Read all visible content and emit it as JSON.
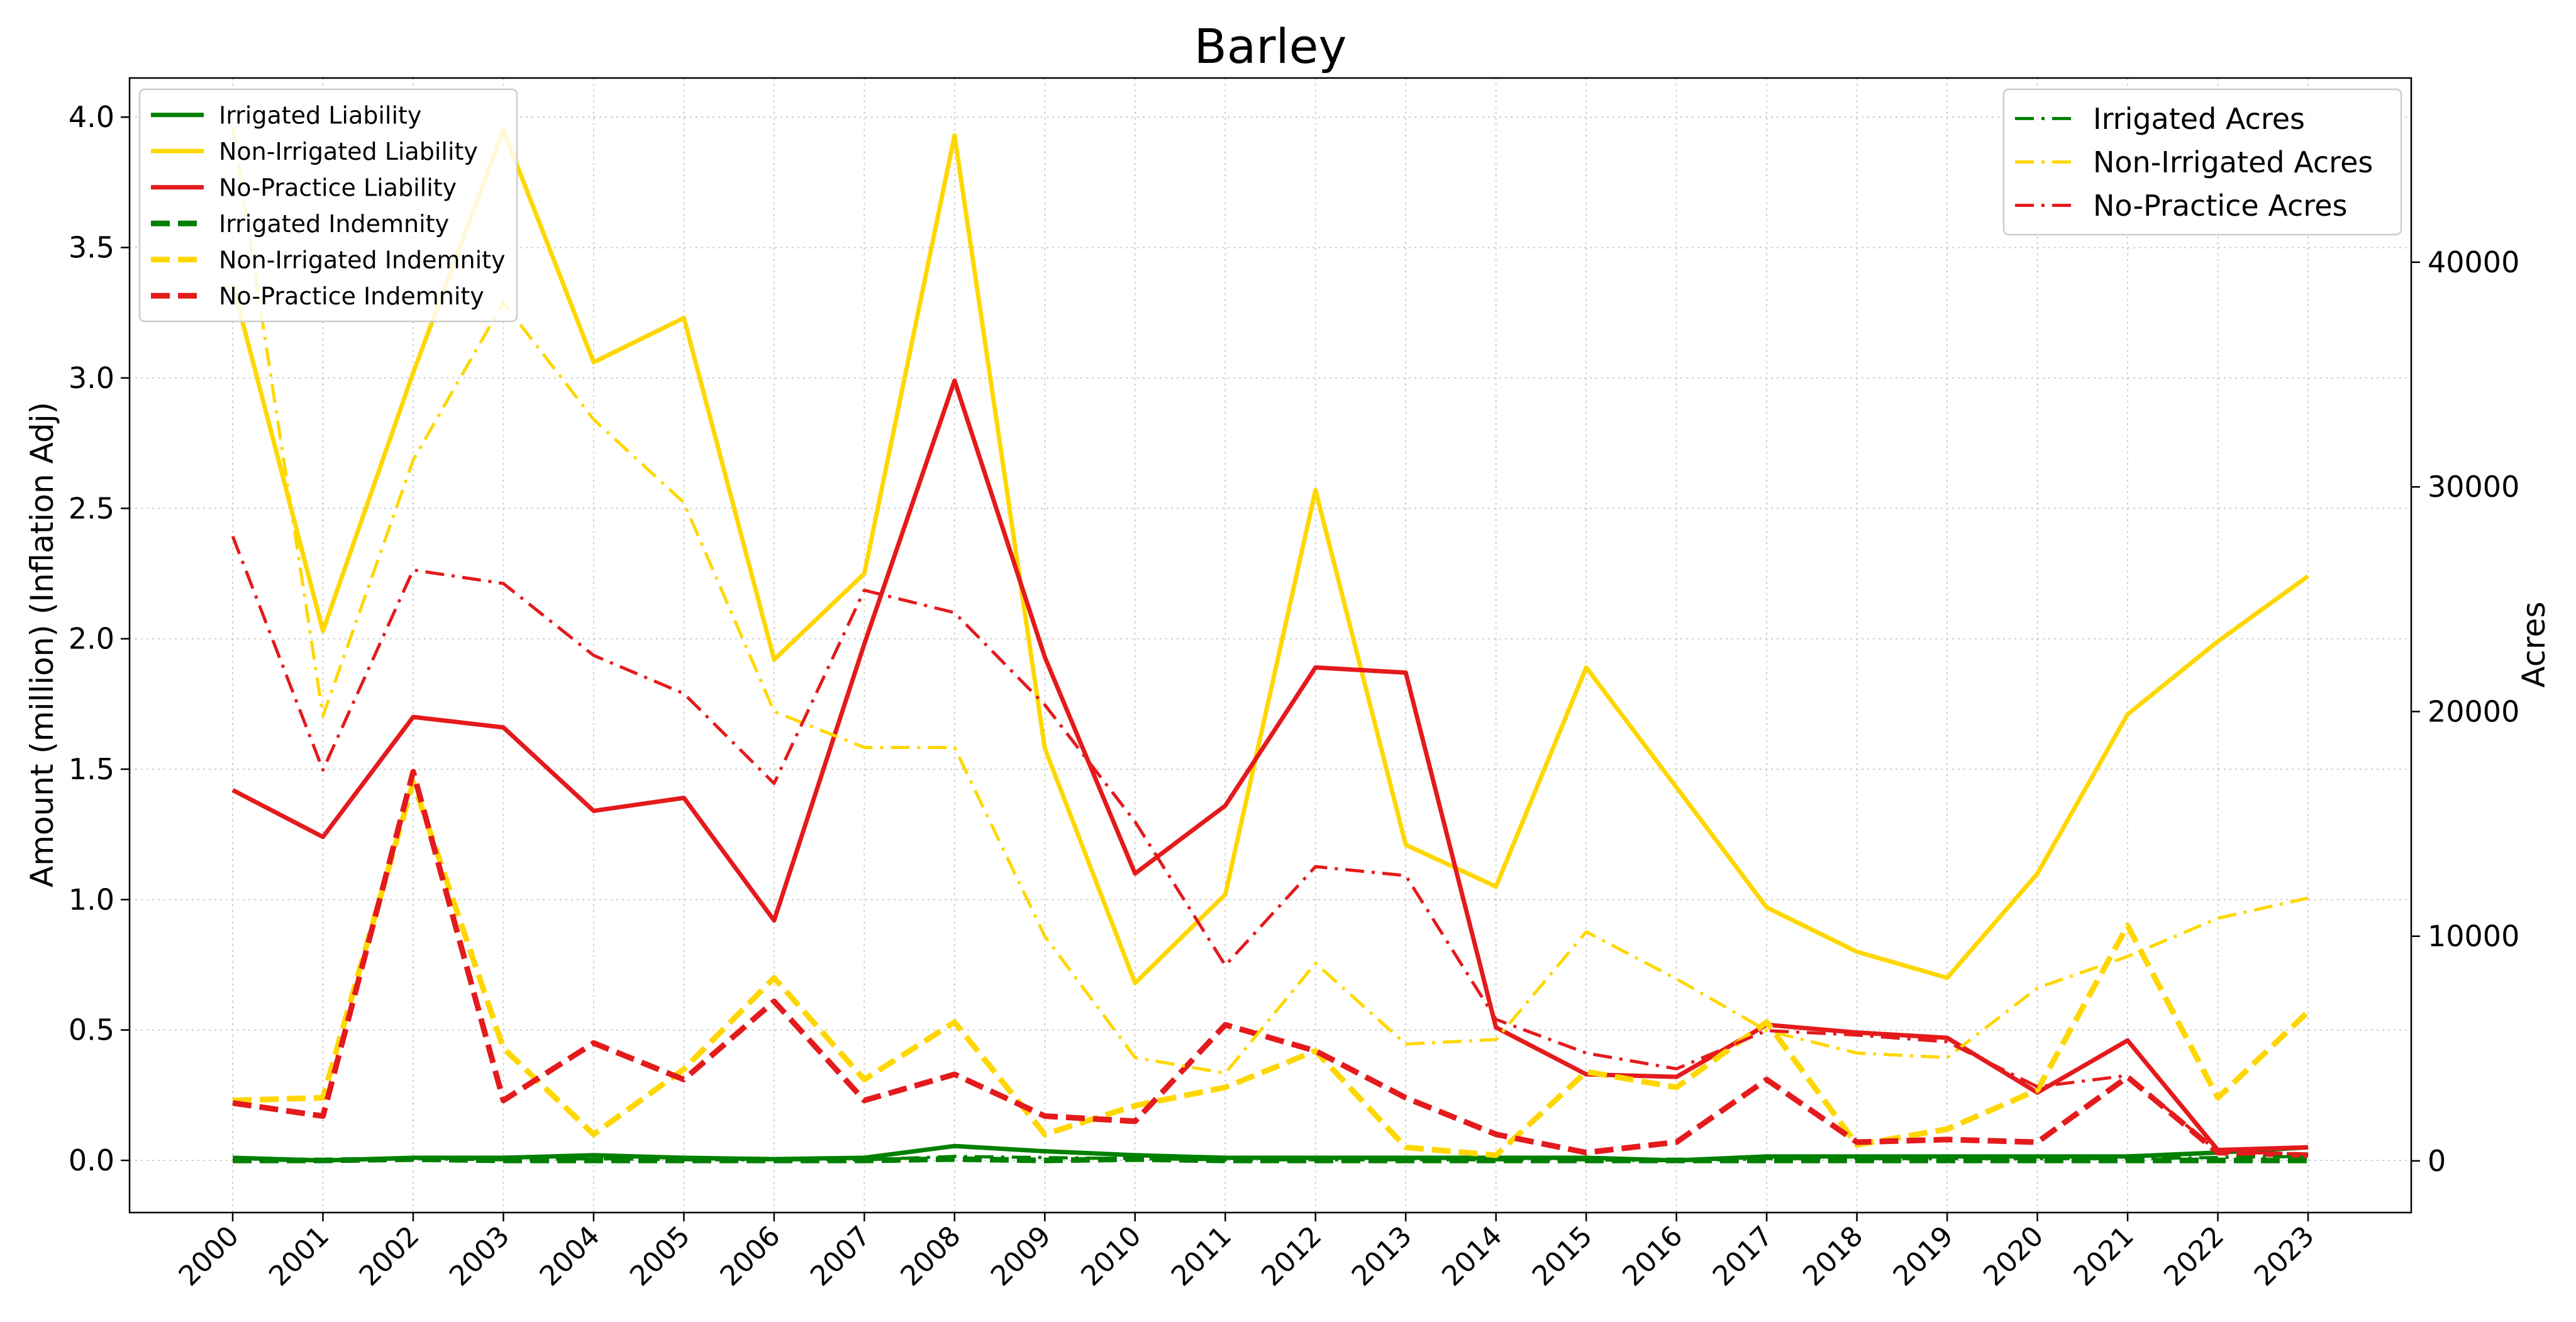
{
  "chart_data": {
    "type": "line",
    "title": "Barley",
    "ylabel": "Amount (million) (Inflation Adj)",
    "y2label": "Acres",
    "ylim": [
      -0.2,
      4.15
    ],
    "y2lim": [
      -2300,
      48200
    ],
    "yticks": [
      "0.0",
      "0.5",
      "1.0",
      "1.5",
      "2.0",
      "2.5",
      "3.0",
      "3.5",
      "4.0"
    ],
    "y2ticks": [
      "0",
      "10000",
      "20000",
      "30000",
      "40000"
    ],
    "grid": true,
    "categories": [
      "2000",
      "2001",
      "2002",
      "2003",
      "2004",
      "2005",
      "2006",
      "2007",
      "2008",
      "2009",
      "2010",
      "2011",
      "2012",
      "2013",
      "2014",
      "2015",
      "2016",
      "2017",
      "2018",
      "2019",
      "2020",
      "2021",
      "2022",
      "2023"
    ],
    "legend_left_placement": "top-left",
    "legend_right_placement": "top-right",
    "series": [
      {
        "name": "Irrigated Liability",
        "axis": "left",
        "style": "solid",
        "color": "#008000",
        "values": [
          0.01,
          0.0,
          0.01,
          0.01,
          0.02,
          0.01,
          0.005,
          0.01,
          0.055,
          0.035,
          0.02,
          0.01,
          0.01,
          0.01,
          0.01,
          0.01,
          0.0,
          0.015,
          0.015,
          0.015,
          0.015,
          0.015,
          0.03,
          0.05
        ]
      },
      {
        "name": "Non-Irrigated Liability",
        "axis": "left",
        "style": "solid",
        "color": "#FFD700",
        "values": [
          3.36,
          2.03,
          3.02,
          3.95,
          3.06,
          3.23,
          1.92,
          2.25,
          3.93,
          1.58,
          0.68,
          1.02,
          2.57,
          1.21,
          1.05,
          1.89,
          1.43,
          0.97,
          0.8,
          0.7,
          1.1,
          1.71,
          1.99,
          2.24
        ]
      },
      {
        "name": "No-Practice Liability",
        "axis": "left",
        "style": "solid",
        "color": "#E41A1C",
        "values": [
          1.42,
          1.24,
          1.7,
          1.66,
          1.34,
          1.39,
          0.92,
          1.98,
          2.99,
          1.93,
          1.1,
          1.36,
          1.89,
          1.87,
          0.51,
          0.33,
          0.32,
          0.52,
          0.49,
          0.47,
          0.26,
          0.46,
          0.04,
          0.05
        ]
      },
      {
        "name": "Irrigated Indemnity",
        "axis": "left",
        "style": "dashed",
        "color": "#008000",
        "values": [
          0.0,
          0.0,
          0.005,
          0.0,
          0.0,
          0.0,
          0.0,
          0.0,
          0.005,
          0.0,
          0.005,
          0.0,
          0.0,
          0.0,
          0.0,
          0.0,
          0.0,
          0.0,
          0.0,
          0.0,
          0.0,
          0.0,
          0.0,
          0.0
        ]
      },
      {
        "name": "Non-Irrigated Indemnity",
        "axis": "left",
        "style": "dashed",
        "color": "#FFD700",
        "values": [
          0.23,
          0.24,
          1.45,
          0.43,
          0.1,
          0.35,
          0.7,
          0.31,
          0.53,
          0.1,
          0.21,
          0.28,
          0.42,
          0.05,
          0.02,
          0.34,
          0.28,
          0.53,
          0.06,
          0.12,
          0.27,
          0.9,
          0.24,
          0.57
        ]
      },
      {
        "name": "No-Practice Indemnity",
        "axis": "left",
        "style": "dashed",
        "color": "#E41A1C",
        "values": [
          0.22,
          0.17,
          1.49,
          0.23,
          0.45,
          0.31,
          0.61,
          0.23,
          0.33,
          0.17,
          0.15,
          0.52,
          0.42,
          0.24,
          0.1,
          0.03,
          0.07,
          0.31,
          0.07,
          0.08,
          0.07,
          0.32,
          0.03,
          0.02
        ]
      },
      {
        "name": "Irrigated Acres",
        "axis": "right",
        "style": "dashdot",
        "color": "#008000",
        "values": [
          50,
          0,
          100,
          50,
          100,
          50,
          50,
          50,
          200,
          150,
          100,
          50,
          50,
          50,
          50,
          50,
          0,
          100,
          100,
          100,
          100,
          100,
          150,
          200
        ]
      },
      {
        "name": "Non-Irrigated Acres",
        "axis": "right",
        "style": "dashdot",
        "color": "#FFD700",
        "values": [
          46000,
          19800,
          31200,
          38200,
          33000,
          29300,
          20000,
          18400,
          18400,
          10000,
          4600,
          3900,
          8800,
          5200,
          5400,
          10200,
          8100,
          5800,
          4800,
          4600,
          7700,
          9100,
          10800,
          11700
        ]
      },
      {
        "name": "No-Practice Acres",
        "axis": "right",
        "style": "dashdot",
        "color": "#E41A1C",
        "values": [
          27800,
          17400,
          26300,
          25700,
          22500,
          20800,
          16800,
          25400,
          24400,
          20300,
          15100,
          8700,
          13100,
          12700,
          6300,
          4800,
          4100,
          5800,
          5600,
          5300,
          3300,
          3800,
          400,
          300
        ]
      }
    ]
  }
}
